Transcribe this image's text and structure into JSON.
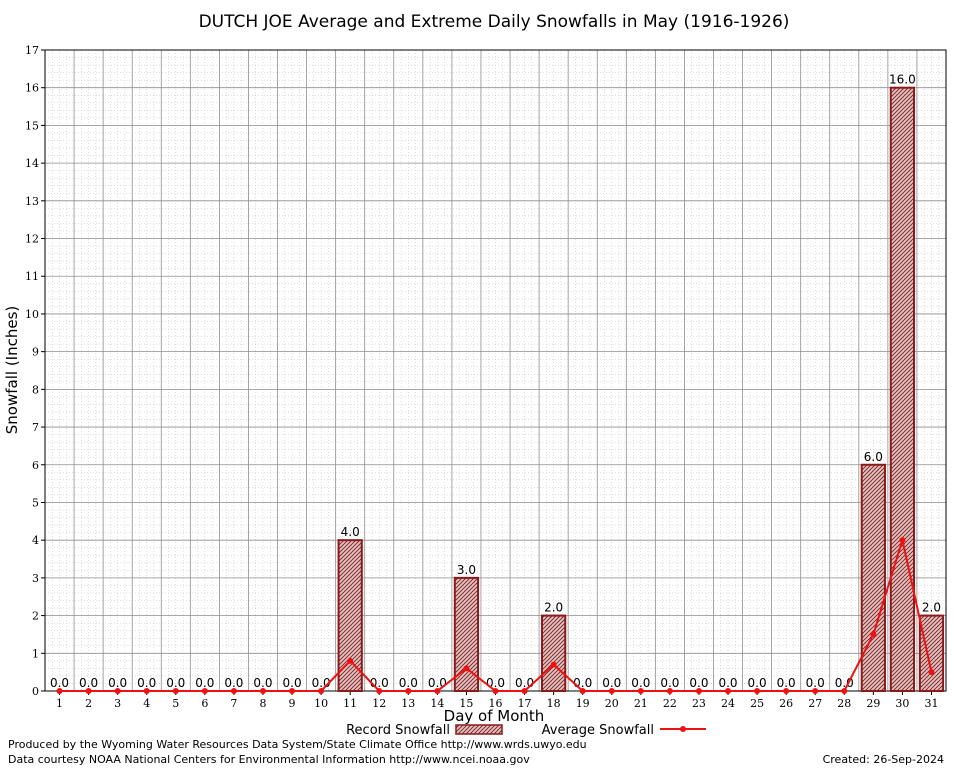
{
  "chart_data": {
    "type": "bar",
    "title": "DUTCH JOE Average and Extreme Daily Snowfalls in May (1916-1926)",
    "xlabel": "Day of Month",
    "ylabel": "Snowfall (Inches)",
    "ylim": [
      0,
      17
    ],
    "yticks": [
      "0",
      "1",
      "2",
      "3",
      "4",
      "5",
      "6",
      "7",
      "8",
      "9",
      "10",
      "11",
      "12",
      "13",
      "14",
      "15",
      "16",
      "17"
    ],
    "categories": [
      "1",
      "2",
      "3",
      "4",
      "5",
      "6",
      "7",
      "8",
      "9",
      "10",
      "11",
      "12",
      "13",
      "14",
      "15",
      "16",
      "17",
      "18",
      "19",
      "20",
      "21",
      "22",
      "23",
      "24",
      "25",
      "26",
      "27",
      "28",
      "29",
      "30",
      "31"
    ],
    "grid": true,
    "series": [
      {
        "name": "Record Snowfall",
        "type": "bar",
        "color": "#8b1a1a",
        "values": [
          0,
          0,
          0,
          0,
          0,
          0,
          0,
          0,
          0,
          0,
          4,
          0,
          0,
          0,
          3,
          0,
          0,
          2,
          0,
          0,
          0,
          0,
          0,
          0,
          0,
          0,
          0,
          0,
          6,
          16,
          2
        ],
        "labels": [
          "0.0",
          "0.0",
          "0.0",
          "0.0",
          "0.0",
          "0.0",
          "0.0",
          "0.0",
          "0.0",
          "0.0",
          "4.0",
          "0.0",
          "0.0",
          "0.0",
          "3.0",
          "0.0",
          "0.0",
          "2.0",
          "0.0",
          "0.0",
          "0.0",
          "0.0",
          "0.0",
          "0.0",
          "0.0",
          "0.0",
          "0.0",
          "0.0",
          "6.0",
          "16.0",
          "2.0"
        ]
      },
      {
        "name": "Average Snowfall",
        "type": "line",
        "color": "#ee1111",
        "values": [
          0,
          0,
          0,
          0,
          0,
          0,
          0,
          0,
          0,
          0,
          0.8,
          0,
          0,
          0,
          0.6,
          0,
          0,
          0.7,
          0,
          0,
          0,
          0,
          0,
          0,
          0,
          0,
          0,
          0,
          1.5,
          4.0,
          0.5
        ]
      }
    ],
    "legend_position": "bottom"
  },
  "footer": {
    "produced_by": "Produced by the Wyoming Water Resources Data System/State Climate Office http://www.wrds.uwyo.edu",
    "data_courtesy": "Data courtesy NOAA National Centers for Environmental Information http://www.ncei.noaa.gov",
    "created": "Created:  26-Sep-2024"
  }
}
